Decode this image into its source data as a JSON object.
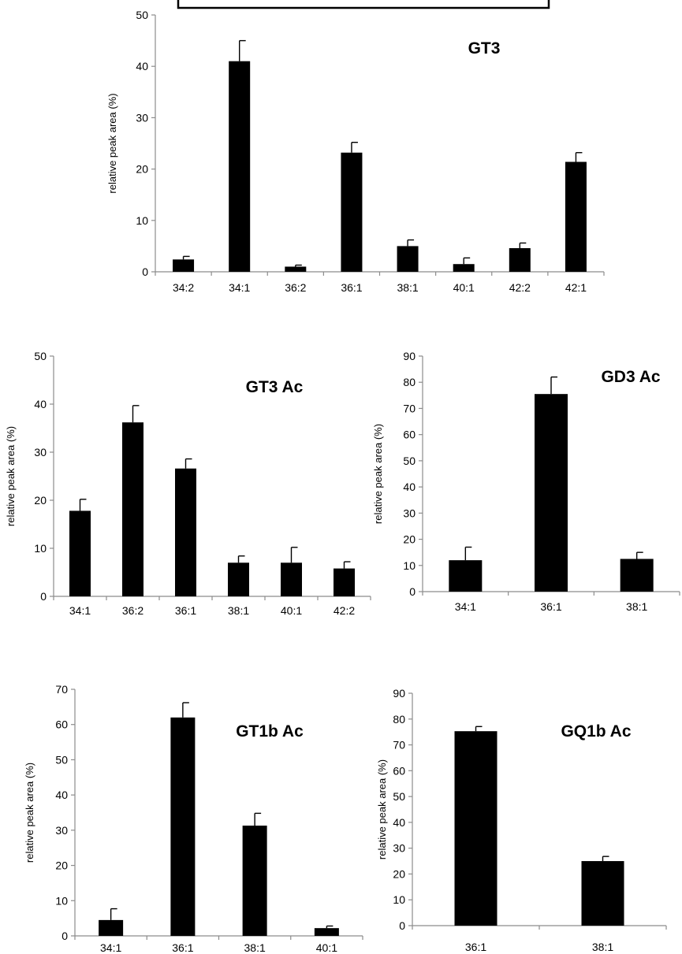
{
  "chart_data": [
    {
      "type": "bar",
      "title": "GT3",
      "ylabel": "relative peak area  (%)",
      "xlabel": "",
      "categories": [
        "34:2",
        "34:1",
        "36:2",
        "36:1",
        "38:1",
        "40:1",
        "42:2",
        "42:1"
      ],
      "values": [
        2.4,
        41,
        1.0,
        23.2,
        5.0,
        1.5,
        4.6,
        21.4
      ],
      "error": [
        0.6,
        4.0,
        0.3,
        2.0,
        1.2,
        1.2,
        1.0,
        1.8
      ],
      "ylim": [
        0,
        50
      ],
      "yticks": [
        0,
        10,
        20,
        30,
        40,
        50
      ],
      "grid": false,
      "color": "#000000"
    },
    {
      "type": "bar",
      "title": "GT3 Ac",
      "ylabel": "relative peak area  (%)",
      "xlabel": "",
      "categories": [
        "34:1",
        "36:2",
        "36:1",
        "38:1",
        "40:1",
        "42:2"
      ],
      "values": [
        17.8,
        36.2,
        26.6,
        7.0,
        7.0,
        5.8
      ],
      "error": [
        2.4,
        3.5,
        2.0,
        1.4,
        3.2,
        1.4
      ],
      "ylim": [
        0,
        50
      ],
      "yticks": [
        0,
        10,
        20,
        30,
        40,
        50
      ],
      "grid": false,
      "color": "#000000"
    },
    {
      "type": "bar",
      "title": "GD3 Ac",
      "ylabel": "relative peak area  (%)",
      "xlabel": "",
      "categories": [
        "34:1",
        "36:1",
        "38:1"
      ],
      "values": [
        12,
        75.5,
        12.5
      ],
      "error": [
        5.0,
        6.5,
        2.5
      ],
      "ylim": [
        0,
        90
      ],
      "yticks": [
        0,
        10,
        20,
        30,
        40,
        50,
        60,
        70,
        80,
        90
      ],
      "grid": false,
      "color": "#000000"
    },
    {
      "type": "bar",
      "title": "GT1b Ac",
      "ylabel": "relative peak area  (%)",
      "xlabel": "",
      "categories": [
        "34:1",
        "36:1",
        "38:1",
        "40:1"
      ],
      "values": [
        4.5,
        62,
        31.3,
        2.2
      ],
      "error": [
        3.2,
        4.2,
        3.5,
        0.6
      ],
      "ylim": [
        0,
        70
      ],
      "yticks": [
        0,
        10,
        20,
        30,
        40,
        50,
        60,
        70
      ],
      "grid": false,
      "color": "#000000"
    },
    {
      "type": "bar",
      "title": "GQ1b Ac",
      "ylabel": "relative peak area  (%)",
      "xlabel": "",
      "categories": [
        "36:1",
        "38:1"
      ],
      "values": [
        75.3,
        25
      ],
      "error": [
        1.8,
        1.8
      ],
      "ylim": [
        0,
        90
      ],
      "yticks": [
        0,
        10,
        20,
        30,
        40,
        50,
        60,
        70,
        80,
        90
      ],
      "grid": false,
      "color": "#000000"
    }
  ]
}
